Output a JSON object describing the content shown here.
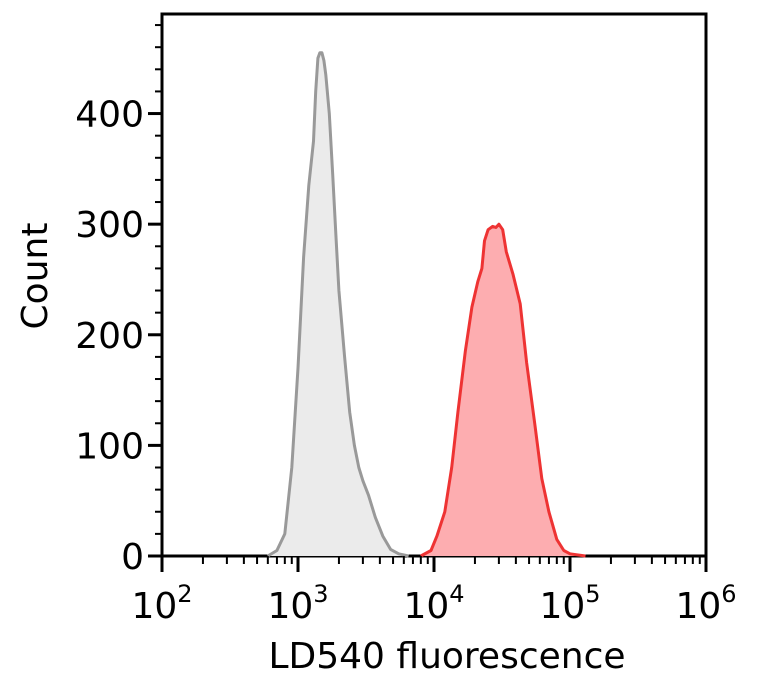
{
  "chart_data": {
    "type": "area",
    "title": "",
    "xlabel": "LD540 fluorescence",
    "ylabel": "Count",
    "x_scale": "log",
    "xlim": [
      100,
      1000000
    ],
    "ylim": [
      0,
      490
    ],
    "grid": false,
    "legend": "none",
    "x_ticks": [
      {
        "value": 100,
        "base": "10",
        "exp": "2"
      },
      {
        "value": 1000,
        "base": "10",
        "exp": "3"
      },
      {
        "value": 10000,
        "base": "10",
        "exp": "4"
      },
      {
        "value": 100000,
        "base": "10",
        "exp": "5"
      },
      {
        "value": 1000000,
        "base": "10",
        "exp": "6"
      }
    ],
    "y_ticks": [
      {
        "value": 0,
        "label": "0"
      },
      {
        "value": 100,
        "label": "100"
      },
      {
        "value": 200,
        "label": "200"
      },
      {
        "value": 300,
        "label": "300"
      },
      {
        "value": 400,
        "label": "400"
      }
    ],
    "series": [
      {
        "stroke": "#999999",
        "fill": "#ebebeb",
        "points": [
          [
            600,
            0
          ],
          [
            700,
            5
          ],
          [
            800,
            20
          ],
          [
            900,
            80
          ],
          [
            1000,
            170
          ],
          [
            1100,
            270
          ],
          [
            1200,
            335
          ],
          [
            1300,
            375
          ],
          [
            1350,
            420
          ],
          [
            1400,
            450
          ],
          [
            1450,
            455
          ],
          [
            1500,
            455
          ],
          [
            1550,
            448
          ],
          [
            1600,
            435
          ],
          [
            1700,
            400
          ],
          [
            1800,
            345
          ],
          [
            1900,
            290
          ],
          [
            2000,
            240
          ],
          [
            2200,
            180
          ],
          [
            2400,
            130
          ],
          [
            2600,
            100
          ],
          [
            2800,
            80
          ],
          [
            3000,
            68
          ],
          [
            3300,
            55
          ],
          [
            3700,
            35
          ],
          [
            4200,
            18
          ],
          [
            4800,
            6
          ],
          [
            5500,
            2
          ],
          [
            6500,
            0
          ]
        ]
      },
      {
        "stroke": "#ee3333",
        "fill": "#fdadb0",
        "points": [
          [
            8000,
            0
          ],
          [
            9500,
            5
          ],
          [
            10500,
            18
          ],
          [
            12000,
            40
          ],
          [
            13500,
            80
          ],
          [
            15000,
            130
          ],
          [
            17000,
            185
          ],
          [
            19000,
            225
          ],
          [
            21000,
            248
          ],
          [
            22500,
            260
          ],
          [
            23500,
            285
          ],
          [
            25000,
            295
          ],
          [
            27000,
            298
          ],
          [
            28500,
            297
          ],
          [
            30000,
            300
          ],
          [
            32000,
            295
          ],
          [
            34000,
            275
          ],
          [
            38000,
            255
          ],
          [
            43000,
            228
          ],
          [
            48000,
            175
          ],
          [
            55000,
            120
          ],
          [
            62000,
            70
          ],
          [
            70000,
            40
          ],
          [
            80000,
            15
          ],
          [
            90000,
            5
          ],
          [
            100000,
            2
          ],
          [
            130000,
            0
          ]
        ]
      }
    ]
  }
}
